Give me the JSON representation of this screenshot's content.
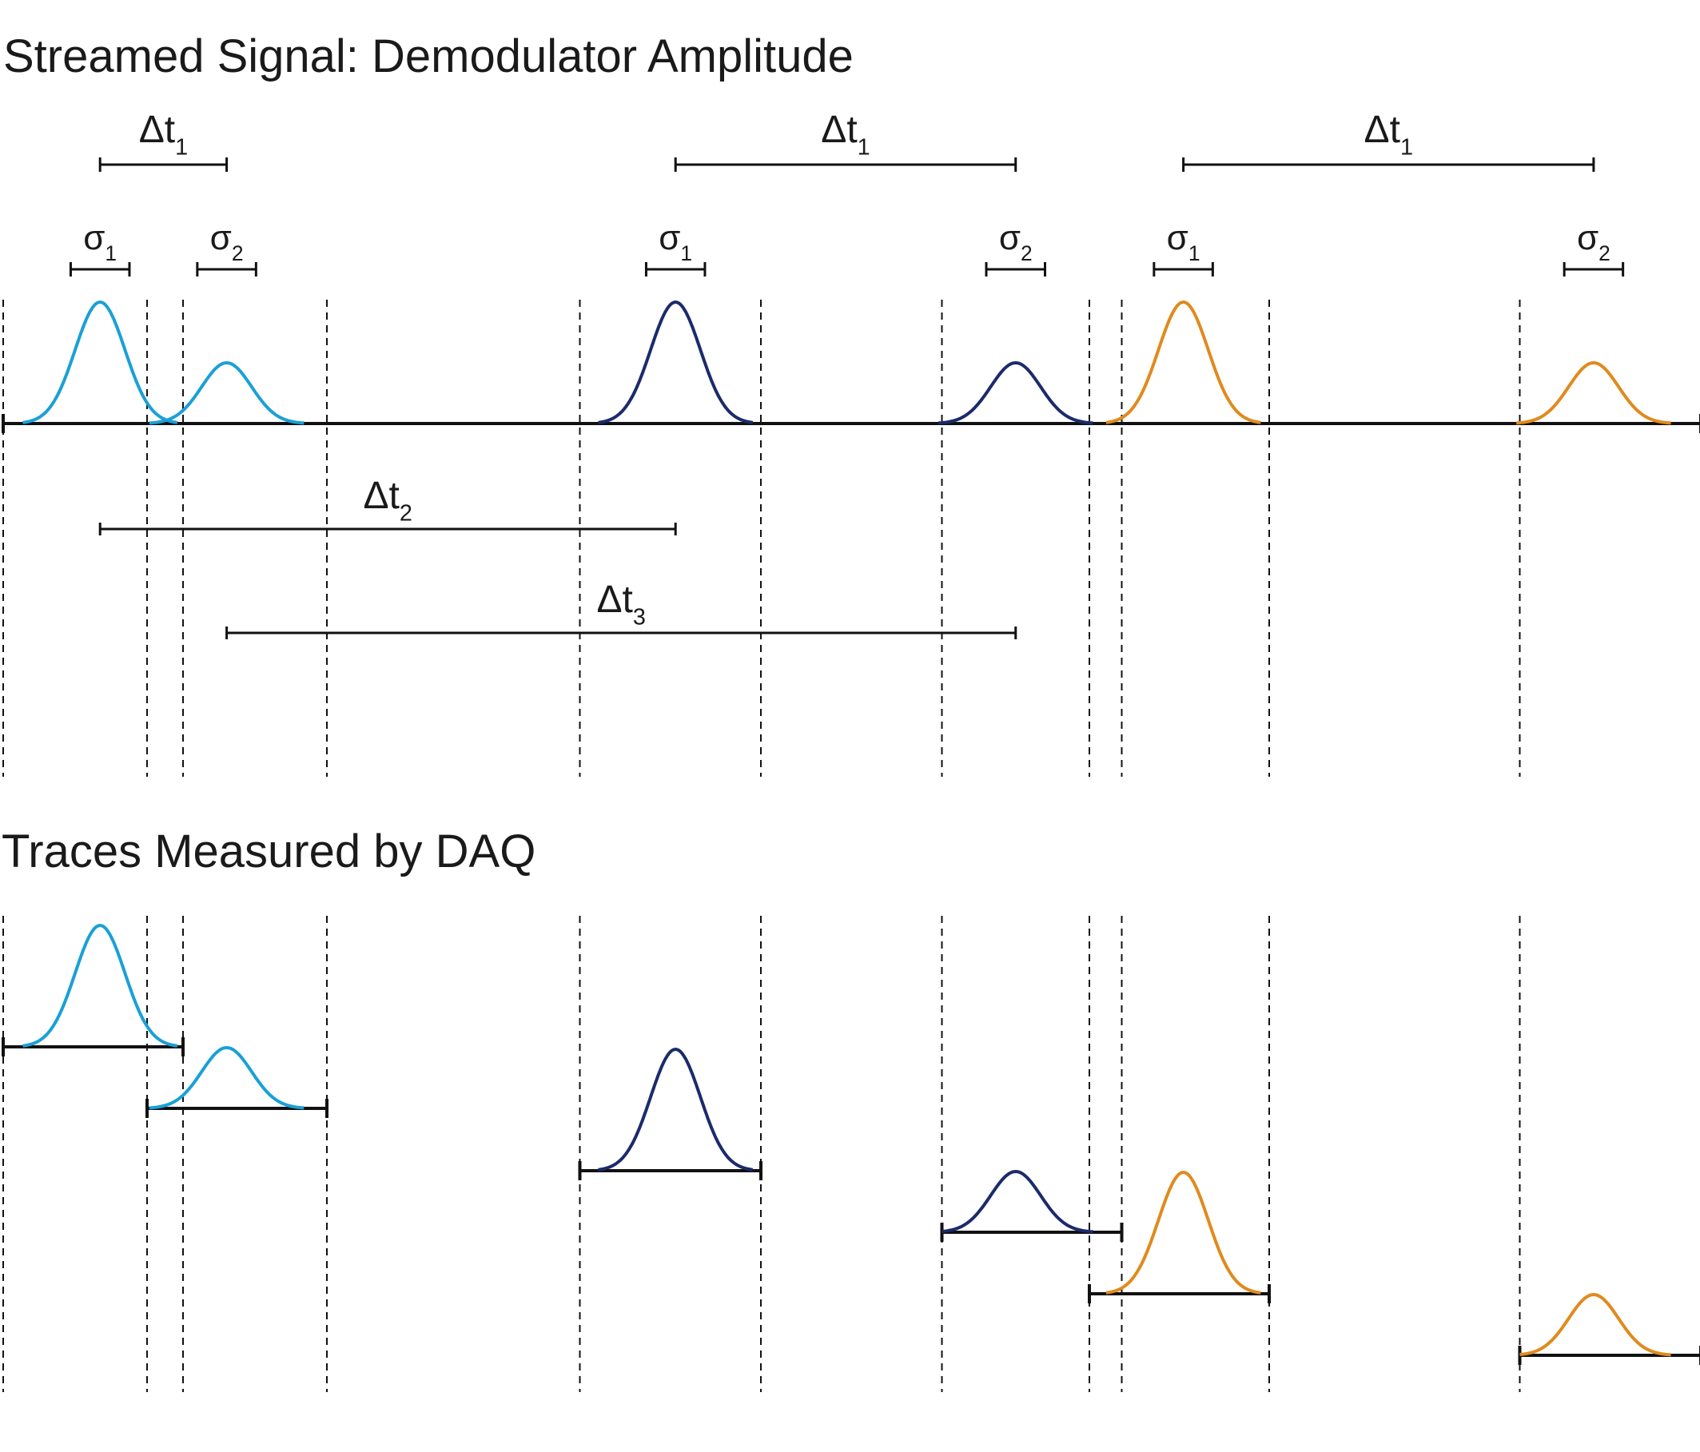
{
  "colors": {
    "ink": "#111111",
    "light_blue": "#1aa0d6",
    "dark_blue": "#1b2b6b",
    "orange": "#e08a1e"
  },
  "titles": {
    "streamed": "Streamed Signal: Demodulator Amplitude",
    "traces": "Traces Measured by DAQ"
  },
  "labels": {
    "delta": "Δt",
    "sigma": "σ"
  },
  "event_pairs": [
    {
      "color_key": "light_blue",
      "pulse1_t": 80.8,
      "pulse2_t": 186.4
    },
    {
      "color_key": "dark_blue",
      "pulse1_t": 560.8,
      "pulse2_t": 844.5
    },
    {
      "color_key": "orange",
      "pulse1_t": 984.4,
      "pulse2_t": 1326.6
    }
  ],
  "time_span": [
    0,
    1416
  ],
  "intervals": {
    "dt1": [
      {
        "from": 80.8,
        "to": 186.4,
        "sub": "1"
      },
      {
        "from": 560.8,
        "to": 844.5,
        "sub": "1"
      },
      {
        "from": 984.4,
        "to": 1326.6,
        "sub": "1"
      }
    ],
    "dt2": {
      "from": 80.8,
      "to": 560.8,
      "sub": "2"
    },
    "dt3": {
      "from": 186.4,
      "to": 844.5,
      "sub": "3"
    }
  },
  "sigma_markers": [
    {
      "center": 80.8,
      "half_width": 24.5,
      "sub": "1"
    },
    {
      "center": 186.4,
      "half_width": 24.5,
      "sub": "2"
    },
    {
      "center": 560.8,
      "half_width": 24.5,
      "sub": "1"
    },
    {
      "center": 844.5,
      "half_width": 24.5,
      "sub": "2"
    },
    {
      "center": 984.4,
      "half_width": 24.5,
      "sub": "1"
    },
    {
      "center": 1326.6,
      "half_width": 24.5,
      "sub": "2"
    }
  ],
  "pulse_shape": {
    "big_amplitude": 1.0,
    "small_amplitude": 0.5,
    "width_sigma": 20.8
  },
  "trace_windows": [
    {
      "from": 0,
      "to": 150,
      "pulse_t": 80.8,
      "amplitude": 1.0,
      "color_key": "light_blue"
    },
    {
      "from": 120,
      "to": 270,
      "pulse_t": 186.4,
      "amplitude": 0.5,
      "color_key": "light_blue"
    },
    {
      "from": 481,
      "to": 632,
      "pulse_t": 560.8,
      "amplitude": 1.0,
      "color_key": "dark_blue"
    },
    {
      "from": 783,
      "to": 933,
      "pulse_t": 844.5,
      "amplitude": 0.5,
      "color_key": "dark_blue"
    },
    {
      "from": 906,
      "to": 1056,
      "pulse_t": 984.4,
      "amplitude": 1.0,
      "color_key": "orange"
    },
    {
      "from": 1265,
      "to": 1416,
      "pulse_t": 1326.6,
      "amplitude": 0.5,
      "color_key": "orange"
    }
  ],
  "window_edges": [
    0,
    120,
    150,
    270,
    481,
    632,
    783,
    906,
    933,
    1056,
    1265,
    1416
  ]
}
